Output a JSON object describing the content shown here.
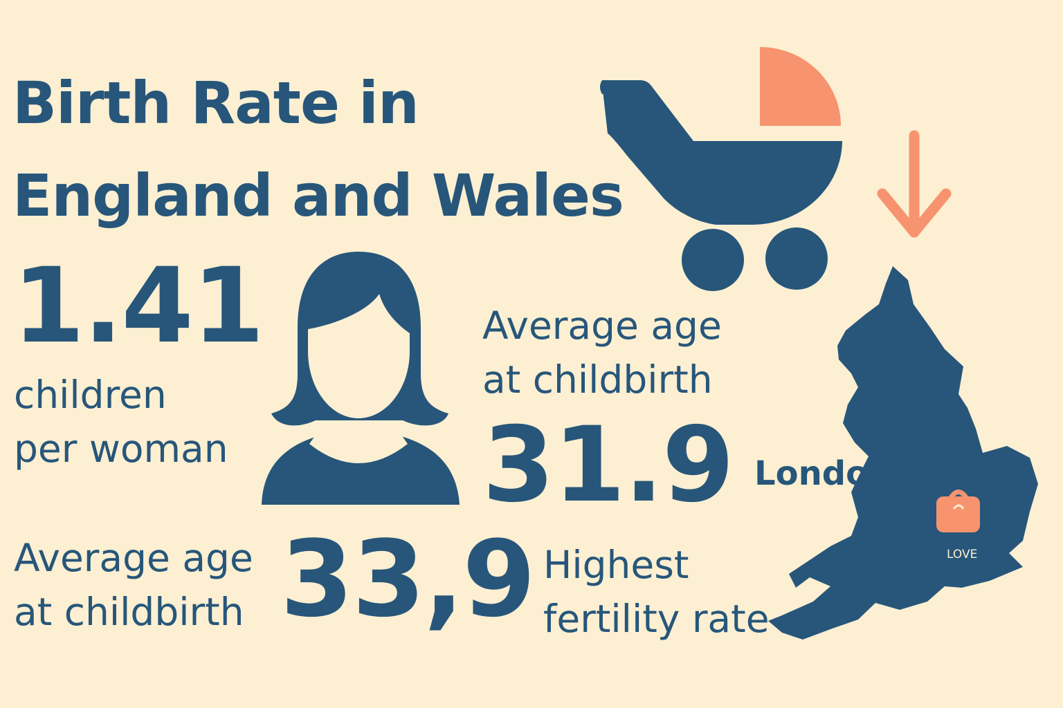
{
  "title_line1": "Birth Rate in",
  "title_line2": "England and Wales",
  "stat_fertility": {
    "value": "1.41",
    "label_line1": "children",
    "label_line2": "per woman"
  },
  "stat_avg_age_1": {
    "label_line1": "Average age",
    "label_line2": "at childbirth",
    "value": "31.9"
  },
  "stat_avg_age_2": {
    "label_line1": "Average age",
    "label_line2": "at childbirth",
    "value": "33,9"
  },
  "stat_highest": {
    "label_line1": "Highest",
    "label_line2": "fertility rate"
  },
  "map": {
    "city_label": "London",
    "marker_label": "LOVE"
  },
  "colors": {
    "background": "#fcefd2",
    "primary": "#27567a",
    "accent": "#f7936e"
  },
  "icons": [
    "stroller-icon",
    "down-arrow-icon",
    "woman-icon",
    "england-map-icon",
    "location-marker-icon"
  ]
}
